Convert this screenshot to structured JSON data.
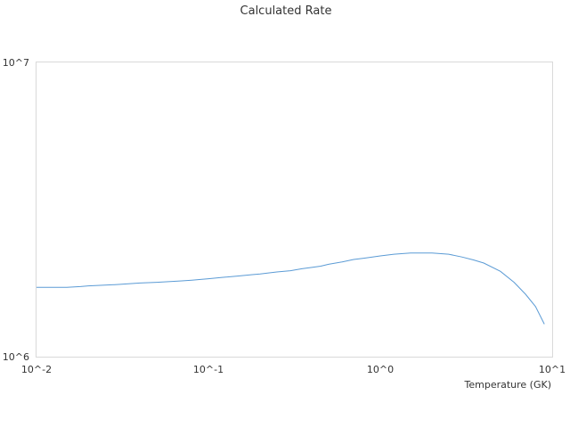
{
  "chart_data": {
    "type": "line",
    "title": "Calculated Rate",
    "xlabel": "Temperature (GK)",
    "ylabel": "",
    "x_scale": "log",
    "y_scale": "log",
    "xlim": [
      0.01,
      10
    ],
    "ylim": [
      1000000,
      10000000
    ],
    "x_ticks": [
      "10^-2",
      "10^-1",
      "10^0",
      "10^1"
    ],
    "y_ticks": [
      "10^6",
      "10^7"
    ],
    "grid": false,
    "colors": {
      "line": "#5b9bd5",
      "frame": "#d9d9d9"
    },
    "series": [
      {
        "x": [
          0.01,
          0.012,
          0.015,
          0.018,
          0.02,
          0.025,
          0.03,
          0.04,
          0.05,
          0.06,
          0.07,
          0.08,
          0.09,
          0.1,
          0.12,
          0.15,
          0.18,
          0.2,
          0.25,
          0.3,
          0.35,
          0.4,
          0.45,
          0.5,
          0.6,
          0.7,
          0.8,
          0.9,
          1.0,
          1.2,
          1.5,
          1.8,
          2.0,
          2.5,
          3.0,
          3.5,
          4.0,
          5.0,
          6.0,
          7.0,
          8.0,
          9.0
        ],
        "y": [
          1720000,
          1720000,
          1720000,
          1730000,
          1740000,
          1750000,
          1760000,
          1780000,
          1790000,
          1800000,
          1810000,
          1820000,
          1830000,
          1840000,
          1860000,
          1880000,
          1900000,
          1910000,
          1940000,
          1960000,
          1990000,
          2010000,
          2030000,
          2060000,
          2100000,
          2140000,
          2160000,
          2180000,
          2200000,
          2230000,
          2250000,
          2250000,
          2250000,
          2230000,
          2180000,
          2130000,
          2080000,
          1950000,
          1790000,
          1630000,
          1480000,
          1290000
        ]
      }
    ]
  }
}
